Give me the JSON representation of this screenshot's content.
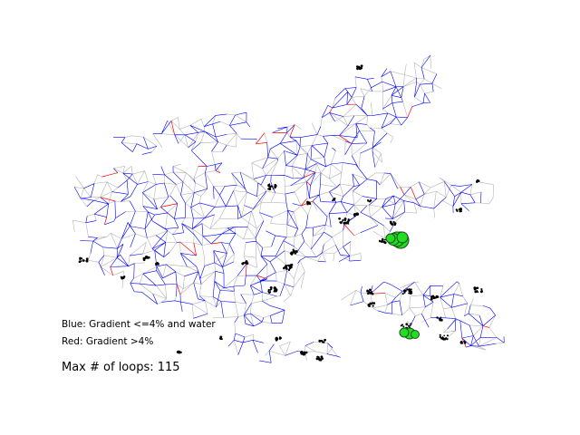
{
  "figure": {
    "background": "#ffffff",
    "network_gray_color": "#b4b4b4",
    "gradient_low_color": "#0000ff",
    "gradient_high_color": "#ff0000",
    "cluster_dot_color": "#000000",
    "loop_marker_fill": "#22dd22",
    "loop_marker_edge": "#1e4d1e"
  },
  "legend": {
    "blue_label": "Blue: Gradient <=4% and water",
    "red_label": "Red: Gradient >4%"
  },
  "stats": {
    "max_loops_label": "Max # of loops: 115"
  }
}
